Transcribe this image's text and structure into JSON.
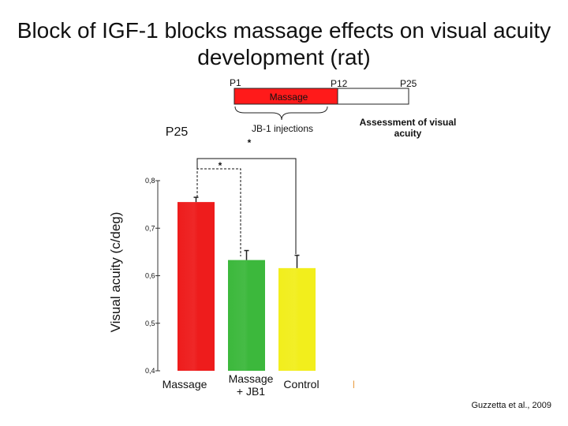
{
  "title_line1": "Block of IGF-1 blocks massage effects on visual acuity",
  "title_line2": "development (rat)",
  "timeline": {
    "p1": "P1",
    "p12": "P12",
    "p25": "P25",
    "massage_label": "Massage",
    "injections_label": "JB-1 injections",
    "injections_star": "*",
    "assessment_line1": "Assessment of visual",
    "assessment_line2": "acuity",
    "p25_big": "P25"
  },
  "significance_star": "*",
  "citation": "Guzzetta et al., 2009",
  "stray_mark": "|",
  "colors": {
    "massage_bar": "#ee1c1c",
    "massage_jb1_bar": "#3cb83c",
    "control_bar": "#f2ee1c",
    "timeline_massage": "#ff1a1a"
  },
  "chart_data": {
    "type": "bar",
    "title": "Block of IGF-1 blocks massage effects on visual acuity development (rat)",
    "xlabel": "",
    "ylabel": "Visual acuity (c/deg)",
    "ylim": [
      0.4,
      0.8
    ],
    "yticks": [
      0.4,
      0.5,
      0.6,
      0.7,
      0.8
    ],
    "ytick_labels": [
      "0,4",
      "0,5",
      "0,6",
      "0,7",
      "0,8"
    ],
    "categories": [
      "Massage",
      "Massage + JB1",
      "Control"
    ],
    "category_lines": [
      [
        "Massage"
      ],
      [
        "Massage",
        "+ JB1"
      ],
      [
        "Control"
      ]
    ],
    "values": [
      0.755,
      0.633,
      0.616
    ],
    "errors": [
      0.01,
      0.02,
      0.027
    ]
  }
}
